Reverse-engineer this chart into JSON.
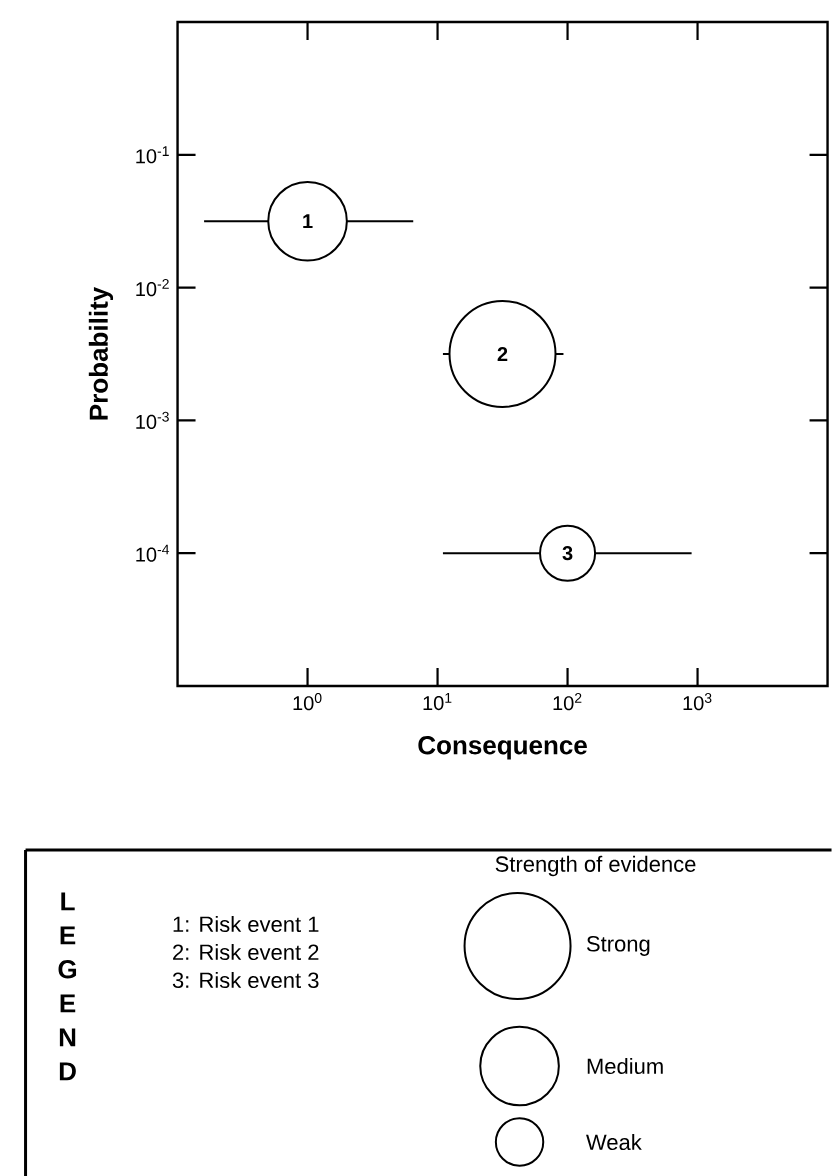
{
  "chart_data": {
    "type": "bubble",
    "xlabel": "Consequence",
    "ylabel": "Probability",
    "legend_title": "Strength of evidence",
    "x": [
      1,
      31.6,
      100
    ],
    "values": [
      0.0316,
      0.00316,
      0.0001
    ],
    "sizes": [
      0.55,
      1,
      0.27
    ],
    "xerrors": [
      [
        0.16,
        6.5
      ],
      [
        11,
        93
      ],
      [
        11,
        900
      ]
    ],
    "color": "#000000",
    "size_legend": [
      {
        "value": 1,
        "label": "Strong"
      },
      {
        "value": 0.55,
        "label": "Medium"
      },
      {
        "value": 0.2,
        "label": "Weak"
      }
    ],
    "log": "xy",
    "xlim": [
      0.1,
      10000
    ],
    "ylim": [
      1e-05,
      1
    ],
    "xticks": [
      {
        "value": 1,
        "label": "10$^{0}$"
      },
      {
        "value": 10,
        "label": "10$^{1}$"
      },
      {
        "value": 100,
        "label": "10$^{2}$"
      },
      {
        "value": 1000,
        "label": "10$^{3}$"
      }
    ],
    "yticks": [
      {
        "value": 0.1,
        "label": "10$^{-1}$"
      },
      {
        "value": 0.01,
        "label": "10$^{-2}$"
      },
      {
        "value": 0.001,
        "label": "10$^{-3}$"
      },
      {
        "value": 0.0001,
        "label": "10$^{-4}$"
      }
    ],
    "annotations": [
      {
        "text": "1",
        "x": 1,
        "y": 0.0316
      },
      {
        "text": "2",
        "x": 31.6,
        "y": 0.00316
      },
      {
        "text": "3",
        "x": 100,
        "y": 0.0001
      },
      "LEGEND",
      "1: Risk event 1",
      "2: Risk event 2",
      "3: Risk event 3"
    ]
  }
}
